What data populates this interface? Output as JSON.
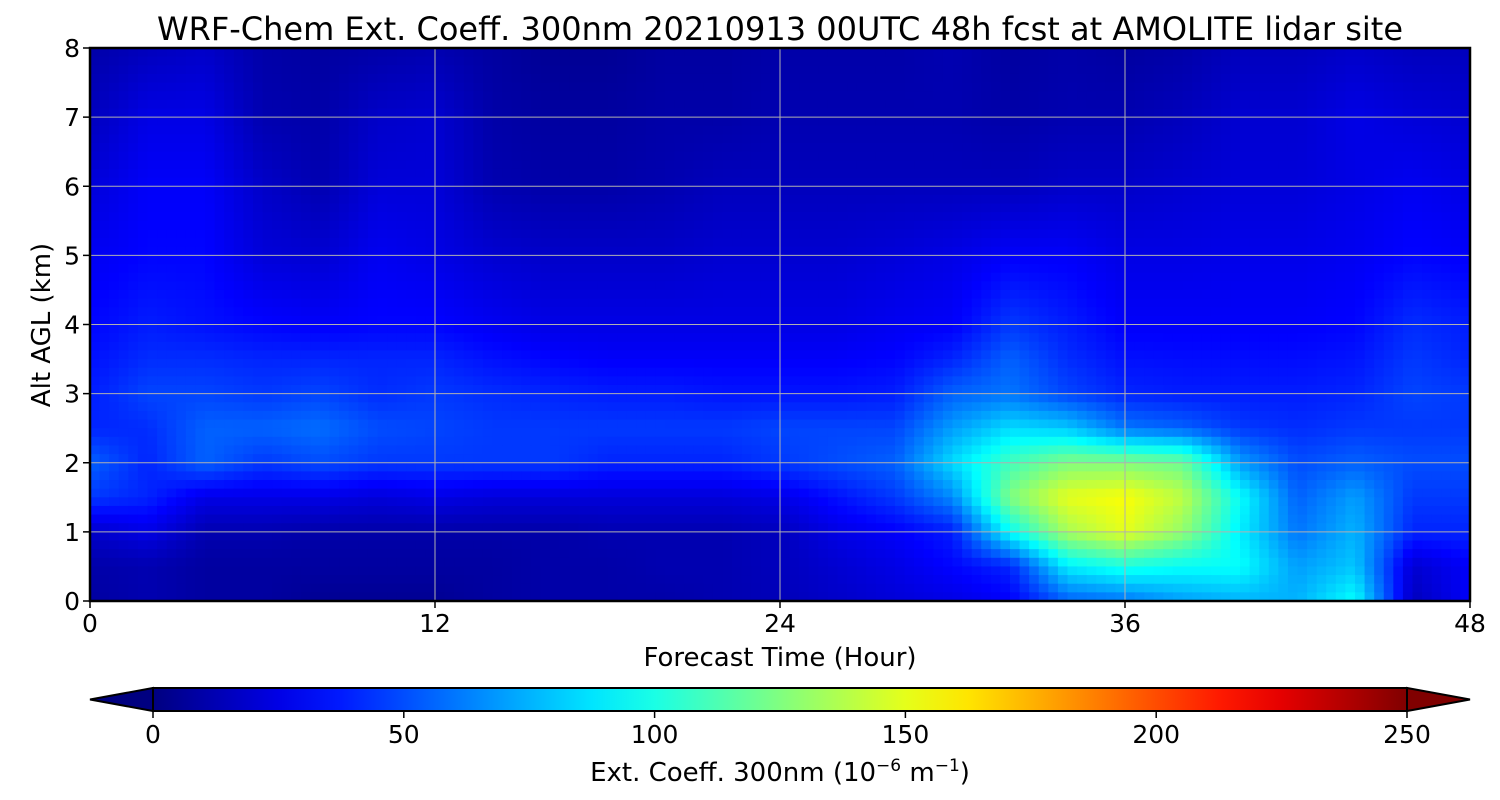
{
  "chart_data": {
    "type": "heatmap",
    "title": "WRF-Chem Ext. Coeff. 300nm  20210913 00UTC 48h fcst at AMOLITE lidar site",
    "xlabel": "Forecast Time (Hour)",
    "ylabel": "Alt AGL (km)",
    "xlim": [
      0,
      48
    ],
    "ylim": [
      0,
      8
    ],
    "x_ticks": [
      "0",
      "12",
      "24",
      "36",
      "48"
    ],
    "y_ticks": [
      "0",
      "1",
      "2",
      "3",
      "4",
      "5",
      "6",
      "7",
      "8"
    ],
    "grid": true,
    "colormap": "jet",
    "colorbar": {
      "label_main": "Ext. Coeff. 300nm  (10",
      "label_exp1": "−6",
      "label_mid": " m",
      "label_exp2": "−1",
      "label_end": ")",
      "range": [
        0,
        250
      ],
      "ticks": [
        "0",
        "50",
        "100",
        "150",
        "200",
        "250"
      ],
      "extend": "both",
      "orientation": "horizontal"
    },
    "x": [
      0,
      2,
      4,
      6,
      8,
      10,
      12,
      14,
      16,
      18,
      20,
      22,
      24,
      26,
      28,
      30,
      32,
      34,
      36,
      38,
      40,
      42,
      44,
      46,
      48
    ],
    "y": [
      0,
      0.5,
      1,
      1.5,
      2,
      2.5,
      3,
      3.5,
      4,
      5,
      6,
      7,
      8
    ],
    "values": [
      [
        8,
        12,
        8,
        8,
        5,
        5,
        5,
        8,
        10,
        10,
        10,
        12,
        14,
        18,
        22,
        25,
        30,
        55,
        60,
        70,
        75,
        75,
        95,
        15,
        30
      ],
      [
        10,
        12,
        8,
        8,
        8,
        8,
        8,
        8,
        10,
        10,
        12,
        12,
        15,
        20,
        25,
        32,
        40,
        90,
        100,
        95,
        95,
        70,
        80,
        20,
        30
      ],
      [
        18,
        25,
        12,
        12,
        10,
        10,
        10,
        10,
        10,
        12,
        12,
        12,
        15,
        25,
        30,
        38,
        95,
        135,
        150,
        130,
        90,
        60,
        75,
        40,
        40
      ],
      [
        45,
        40,
        25,
        25,
        25,
        22,
        25,
        22,
        22,
        22,
        22,
        22,
        25,
        35,
        45,
        65,
        125,
        150,
        155,
        140,
        95,
        55,
        70,
        45,
        45
      ],
      [
        55,
        40,
        55,
        45,
        50,
        45,
        45,
        45,
        45,
        40,
        40,
        40,
        45,
        50,
        55,
        85,
        110,
        125,
        125,
        120,
        70,
        50,
        55,
        50,
        50
      ],
      [
        40,
        42,
        55,
        55,
        58,
        50,
        48,
        45,
        45,
        45,
        45,
        45,
        48,
        48,
        48,
        70,
        85,
        80,
        60,
        55,
        45,
        42,
        45,
        45,
        45
      ],
      [
        38,
        48,
        48,
        45,
        48,
        42,
        45,
        42,
        40,
        38,
        38,
        36,
        36,
        36,
        38,
        55,
        60,
        48,
        40,
        38,
        38,
        38,
        40,
        48,
        45
      ],
      [
        35,
        42,
        42,
        40,
        40,
        40,
        40,
        35,
        32,
        30,
        30,
        30,
        30,
        30,
        32,
        40,
        55,
        42,
        35,
        34,
        34,
        34,
        36,
        45,
        40
      ],
      [
        32,
        38,
        35,
        32,
        30,
        32,
        32,
        28,
        25,
        25,
        25,
        25,
        25,
        25,
        28,
        30,
        45,
        38,
        30,
        30,
        30,
        30,
        32,
        42,
        38
      ],
      [
        28,
        32,
        32,
        22,
        20,
        28,
        25,
        20,
        18,
        18,
        18,
        20,
        20,
        20,
        22,
        25,
        30,
        30,
        25,
        25,
        26,
        26,
        28,
        32,
        30
      ],
      [
        22,
        30,
        30,
        18,
        12,
        22,
        22,
        12,
        10,
        10,
        12,
        15,
        15,
        15,
        15,
        15,
        15,
        18,
        18,
        20,
        22,
        22,
        25,
        28,
        25
      ],
      [
        15,
        25,
        25,
        12,
        10,
        18,
        20,
        10,
        8,
        8,
        10,
        10,
        12,
        12,
        12,
        12,
        10,
        12,
        12,
        15,
        20,
        20,
        25,
        22,
        20
      ],
      [
        10,
        15,
        18,
        10,
        8,
        10,
        12,
        8,
        5,
        5,
        8,
        8,
        10,
        10,
        10,
        12,
        8,
        10,
        8,
        10,
        15,
        15,
        18,
        15,
        15
      ]
    ]
  }
}
